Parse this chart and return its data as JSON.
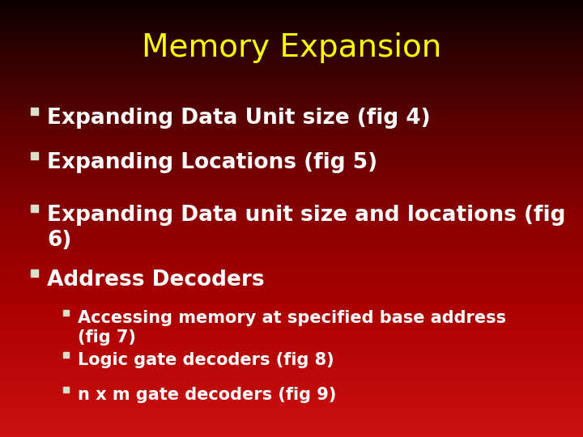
{
  "title": "Memory Expansion",
  "title_color": "#FFFF00",
  "title_fontsize": 28,
  "title_fontweight": "normal",
  "bullet_color": "#FFFFFF",
  "bullet_fontsize": 19,
  "sub_bullet_fontsize": 15,
  "bullet_square_color": "#DDDDCC",
  "sub_bullet_square_color": "#DDDDCC",
  "bullets": [
    "Expanding Data Unit size (fig 4)",
    "Expanding Locations (fig 5)",
    "Expanding Data unit size and locations (fig\n6)",
    "Address Decoders"
  ],
  "sub_bullets": [
    "Accessing memory at specified base address\n(fig 7)",
    "Logic gate decoders (fig 8)",
    "n x m gate decoders (fig 9)"
  ],
  "grad_colors": [
    "#0a0000",
    "#1a0000",
    "#550000",
    "#8B0000",
    "#AA0000",
    "#CC1010"
  ],
  "grad_stops": [
    0.0,
    0.05,
    0.25,
    0.5,
    0.7,
    1.0
  ]
}
